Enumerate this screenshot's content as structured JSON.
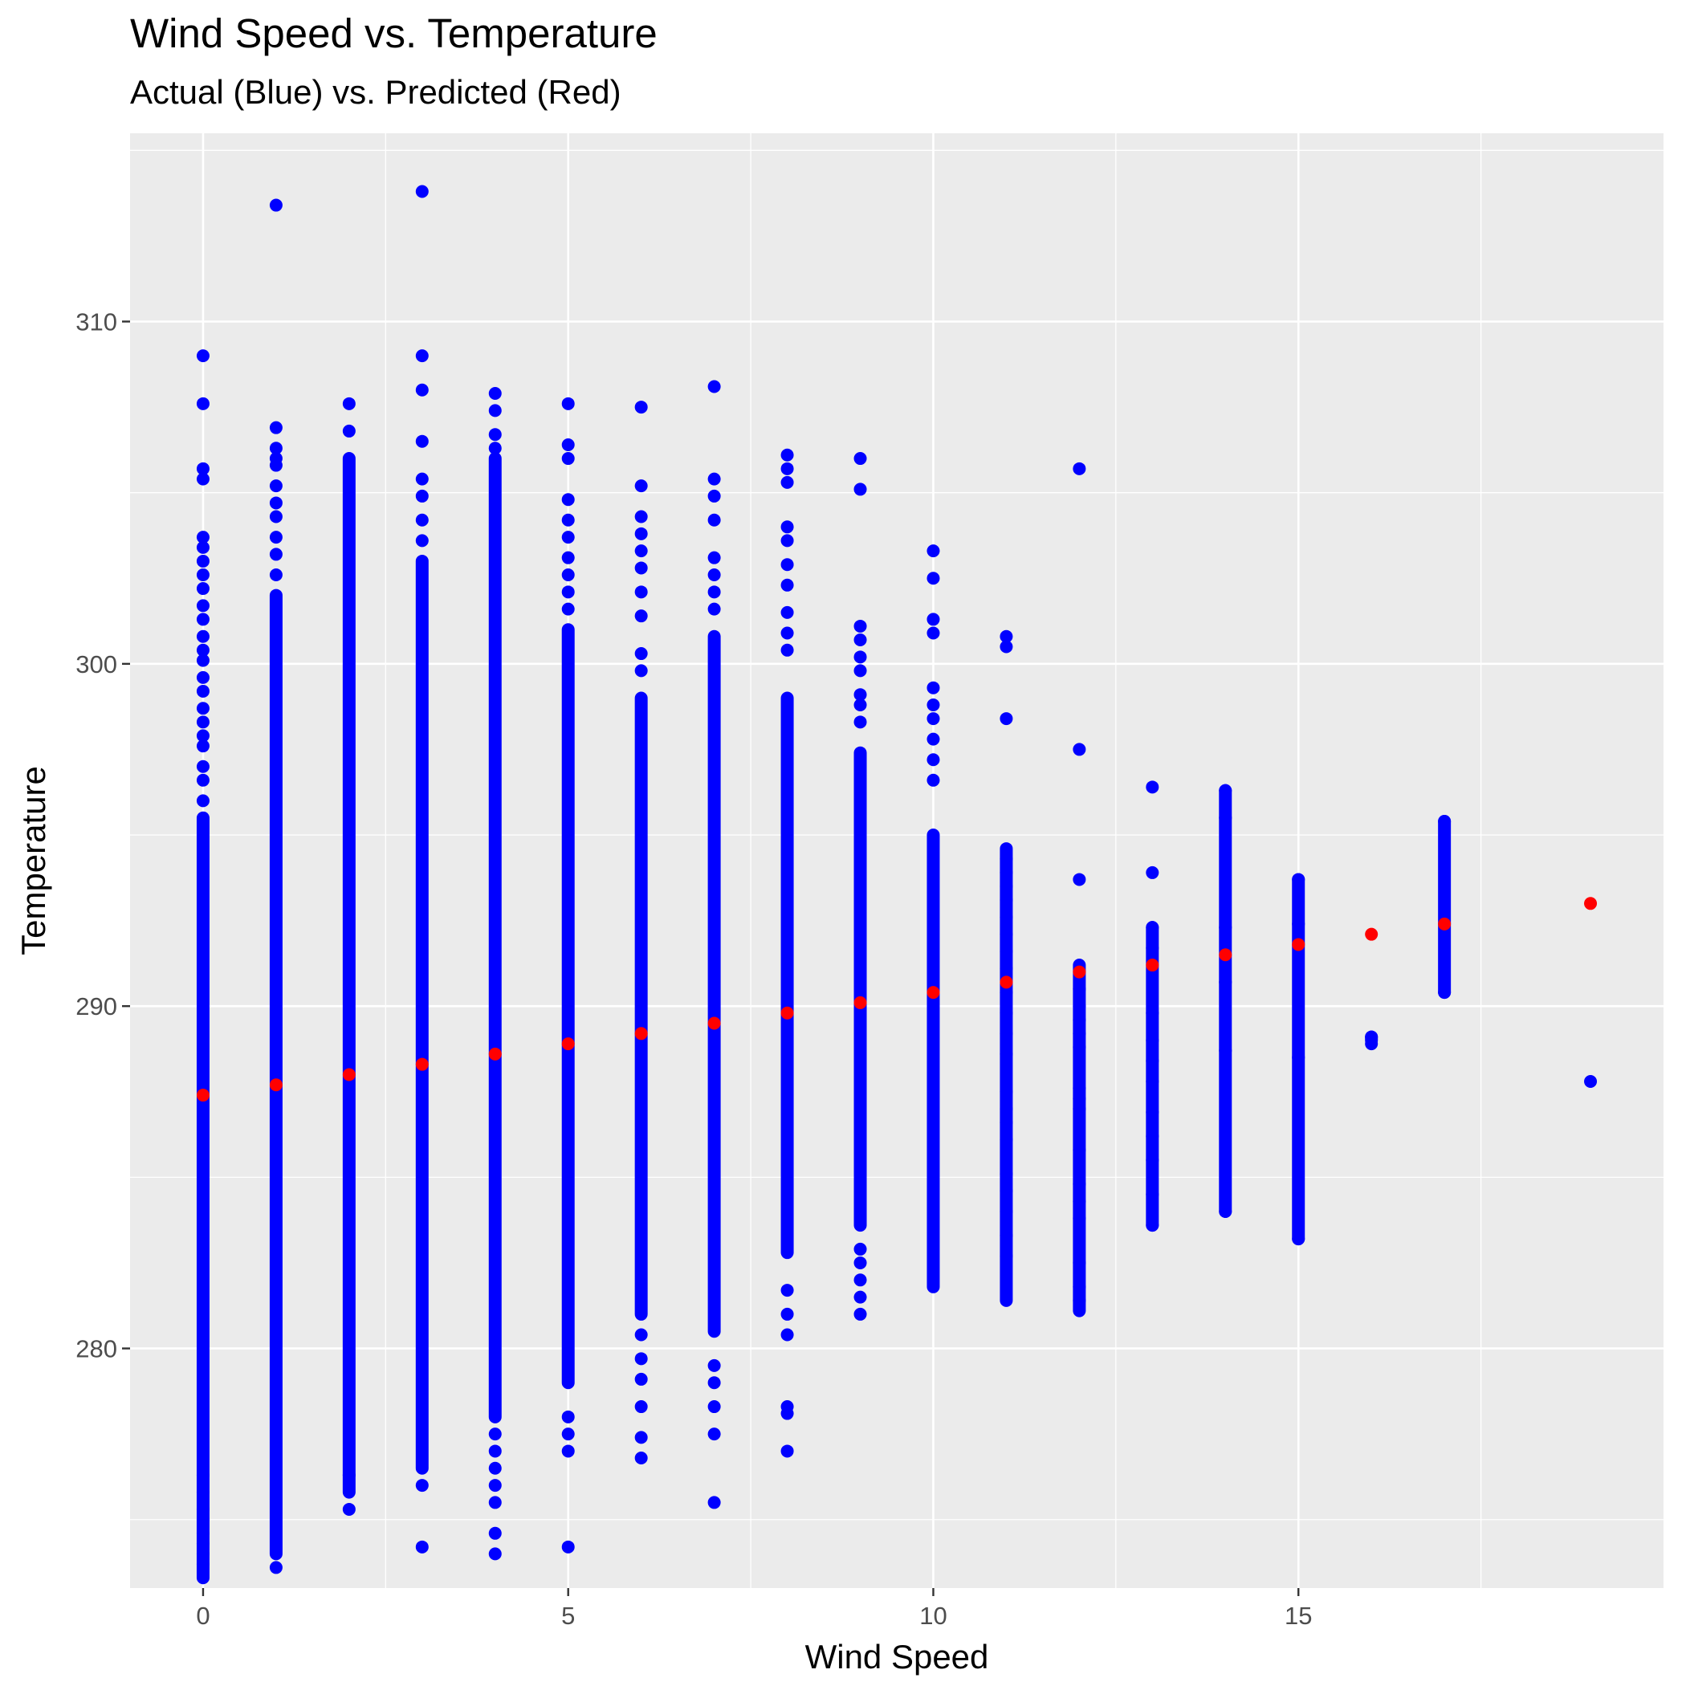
{
  "chart_data": {
    "type": "scatter",
    "title": "Wind Speed vs. Temperature",
    "subtitle": "Actual (Blue) vs. Predicted (Red)",
    "xlabel": "Wind Speed",
    "ylabel": "Temperature",
    "xlim": [
      -1,
      20
    ],
    "ylim": [
      273,
      315.5
    ],
    "x_ticks": [
      0,
      5,
      10,
      15
    ],
    "y_ticks": [
      280,
      290,
      300,
      310
    ],
    "grid": true,
    "legend": "none",
    "colors": {
      "actual": "#0000ff",
      "predicted": "#ff0000",
      "panel": "#ebebeb",
      "grid": "#ffffff"
    },
    "series": [
      {
        "color": "#0000ff",
        "columns": [
          {
            "x": 0,
            "min": 273.3,
            "max": 295.5,
            "points": [
              309.0,
              307.6,
              305.7,
              305.4,
              303.7,
              303.4,
              303.0,
              302.6,
              302.2,
              301.7,
              301.3,
              300.8,
              300.4,
              300.1,
              299.6,
              299.2,
              298.7,
              298.3,
              297.9,
              297.6,
              297.0,
              296.6,
              296.0,
              276.3,
              275.8,
              275.3,
              275.0,
              274.6,
              274.3,
              274.0,
              273.7
            ]
          },
          {
            "x": 1,
            "min": 274.0,
            "max": 302.0,
            "points": [
              313.4,
              306.9,
              306.3,
              306.0,
              305.8,
              305.2,
              304.7,
              304.3,
              303.7,
              303.2,
              302.6,
              273.6
            ]
          },
          {
            "x": 2,
            "min": 275.8,
            "max": 306.0,
            "points": [
              307.6,
              306.8,
              276.3,
              275.3
            ]
          },
          {
            "x": 3,
            "min": 276.5,
            "max": 303.0,
            "points": [
              313.8,
              309.0,
              308.0,
              306.5,
              305.4,
              304.9,
              304.2,
              303.6,
              276.0,
              274.2
            ]
          },
          {
            "x": 4,
            "min": 278.0,
            "max": 306.0,
            "points": [
              307.9,
              307.4,
              306.7,
              306.3,
              277.5,
              277.0,
              276.5,
              276.0,
              275.5,
              274.6,
              274.0
            ]
          },
          {
            "x": 5,
            "min": 279.0,
            "max": 301.0,
            "points": [
              307.6,
              306.4,
              306.0,
              304.8,
              304.2,
              303.7,
              303.1,
              302.6,
              302.1,
              301.6,
              278.0,
              277.5,
              277.0,
              274.2
            ]
          },
          {
            "x": 6,
            "min": 281.0,
            "max": 299.0,
            "points": [
              307.5,
              305.2,
              304.3,
              303.8,
              303.3,
              302.8,
              302.1,
              301.4,
              300.3,
              299.8,
              280.4,
              279.7,
              279.1,
              278.3,
              277.4,
              276.8
            ]
          },
          {
            "x": 7,
            "min": 280.5,
            "max": 300.8,
            "points": [
              308.1,
              305.4,
              304.9,
              304.2,
              303.1,
              302.6,
              302.1,
              301.6,
              279.5,
              279.0,
              278.3,
              277.5,
              275.5
            ]
          },
          {
            "x": 8,
            "min": 282.8,
            "max": 299.0,
            "points": [
              306.1,
              305.7,
              305.3,
              304.0,
              303.6,
              302.9,
              302.3,
              301.5,
              300.9,
              300.4,
              281.7,
              281.0,
              280.4,
              278.3,
              278.1,
              277.0
            ]
          },
          {
            "x": 9,
            "min": 283.6,
            "max": 297.4,
            "points": [
              306.0,
              305.1,
              301.1,
              300.7,
              300.2,
              299.8,
              299.1,
              298.8,
              298.3,
              282.9,
              282.5,
              282.0,
              281.5,
              281.0
            ]
          },
          {
            "x": 10,
            "min": 281.8,
            "max": 295.0,
            "points": [
              303.3,
              302.5,
              301.3,
              300.9,
              299.3,
              298.8,
              298.4,
              297.8,
              297.2,
              296.6
            ]
          },
          {
            "x": 11,
            "min": 281.4,
            "max": 294.6,
            "points": [
              300.8,
              300.5,
              298.4,
              294.3,
              293.9,
              293.5,
              293.1,
              292.6,
              292.1,
              291.6,
              291.1,
              290.4,
              289.8,
              289.2,
              288.6,
              287.5,
              287.0,
              286.6,
              286.1,
              285.1,
              284.6,
              284.0,
              283.3,
              282.7
            ]
          },
          {
            "x": 12,
            "min": 281.1,
            "max": 291.2,
            "points": [
              305.7,
              297.5,
              293.7,
              290.5,
              290.0,
              289.6,
              289.2,
              288.8,
              287.6,
              287.3,
              287.0,
              285.8,
              284.8,
              284.3,
              283.8,
              282.5,
              281.8,
              281.4
            ]
          },
          {
            "x": 13,
            "min": 283.6,
            "max": 292.3,
            "points": [
              296.4,
              293.9,
              292.3,
              291.7,
              289.8,
              289.0,
              288.4,
              287.8,
              286.9,
              286.2,
              285.5,
              284.5,
              283.6
            ]
          },
          {
            "x": 14,
            "min": 284.0,
            "max": 296.3,
            "points": [
              296.3,
              295.5,
              292.3,
              290.7,
              288.7,
              284.0
            ]
          },
          {
            "x": 15,
            "min": 283.2,
            "max": 293.7,
            "points": [
              293.7,
              292.4,
              288.5,
              283.2
            ]
          },
          {
            "x": 16,
            "min": 289.0,
            "max": 289.1,
            "points": [
              289.1,
              288.9
            ]
          },
          {
            "x": 17,
            "min": 290.4,
            "max": 295.4,
            "points": [
              295.4,
              290.4
            ]
          },
          {
            "x": 19,
            "min": 287.8,
            "max": 287.8,
            "points": [
              287.8
            ]
          }
        ]
      },
      {
        "color": "#ff0000",
        "x": [
          0,
          1,
          2,
          3,
          4,
          5,
          6,
          7,
          8,
          9,
          10,
          11,
          12,
          13,
          14,
          15,
          16,
          17,
          19
        ],
        "y": [
          287.4,
          287.7,
          288.0,
          288.3,
          288.6,
          288.9,
          289.2,
          289.5,
          289.8,
          290.1,
          290.4,
          290.7,
          291.0,
          291.2,
          291.5,
          291.8,
          292.1,
          292.4,
          293.0
        ]
      }
    ]
  }
}
